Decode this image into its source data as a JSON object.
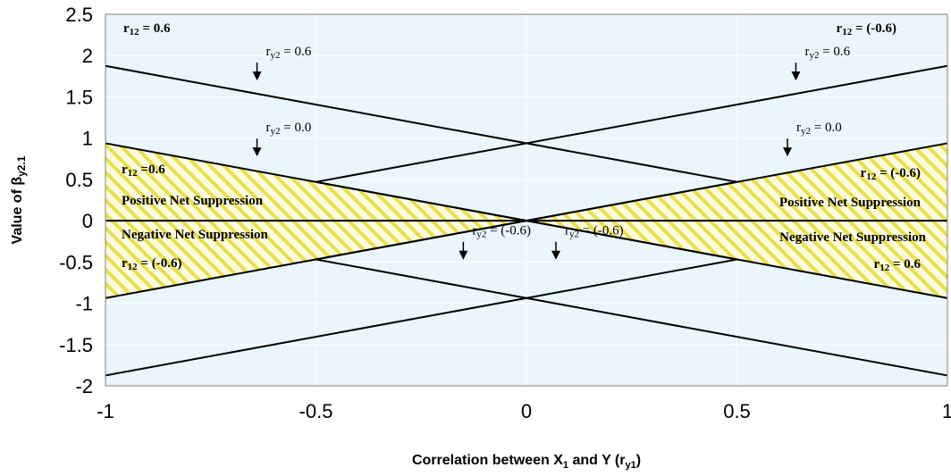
{
  "chart_data": {
    "type": "line",
    "xlabel": "Correlation between X",
    "xlabel_sub": "1",
    "xlabel_tail": " and Y (r",
    "xlabel_sub2": "y1",
    "xlabel_close": ")",
    "ylabel": "Value of β",
    "ylabel_sub": "y2.1",
    "xlim": [
      -1,
      1
    ],
    "ylim": [
      -2,
      2.5
    ],
    "x_ticks": [
      "-1",
      "-0.5",
      "0",
      "0.5",
      "1"
    ],
    "y_ticks": [
      "2.5",
      "2",
      "1.5",
      "1",
      "0.5",
      "0",
      "-0.5",
      "-1",
      "-1.5",
      "-2"
    ],
    "grid": "horizontal",
    "colors": {
      "plot_bg": "#eaf6fb",
      "grid": "#ffffff",
      "line": "#000000",
      "hatch_fill": "#fffbe0",
      "hatch_stripe": "#e7e04a"
    },
    "series": [
      {
        "x": [
          -1,
          0.5
        ],
        "y": [
          1.875,
          0.469
        ]
      },
      {
        "x": [
          -0.5,
          1
        ],
        "y": [
          0.469,
          1.875
        ]
      },
      {
        "x": [
          -1,
          0.5
        ],
        "y": [
          0.9375,
          -0.469
        ]
      },
      {
        "x": [
          -0.5,
          1
        ],
        "y": [
          -0.469,
          0.9375
        ]
      },
      {
        "x": [
          -1,
          0.5
        ],
        "y": [
          -0.9375,
          0.469
        ]
      },
      {
        "x": [
          -0.5,
          1
        ],
        "y": [
          0.469,
          -0.9375
        ]
      },
      {
        "x": [
          -1,
          0.5
        ],
        "y": [
          -1.875,
          -0.469
        ]
      },
      {
        "x": [
          -0.5,
          1
        ],
        "y": [
          -0.469,
          -1.875
        ]
      },
      {
        "x": [
          -1,
          1
        ],
        "y": [
          0,
          0
        ]
      }
    ],
    "shaded_regions": [
      {
        "x": [
          -1,
          0,
          -1
        ],
        "y": [
          0.9375,
          0,
          -0.9375
        ]
      },
      {
        "x": [
          1,
          0,
          1
        ],
        "y": [
          0.9375,
          0,
          -0.9375
        ]
      }
    ],
    "annotations": {
      "corner_left": {
        "main": "r",
        "sub": "12",
        "rest": " = 0.6"
      },
      "corner_right": {
        "main": "r",
        "sub": "12",
        "rest": " = (-0.6)"
      },
      "left_upper_r12": {
        "main": "r",
        "sub": "12",
        "rest": " =0.6"
      },
      "left_pos": "Positive Net Suppression",
      "left_neg": "Negative Net Suppression",
      "left_lower_r12": {
        "main": "r",
        "sub": "12",
        "rest": " = (-0.6)"
      },
      "right_upper_r12": {
        "main": "r",
        "sub": "12",
        "rest": " = (-0.6)"
      },
      "right_pos": "Positive Net Suppression",
      "right_neg": "Negative Net Suppression",
      "right_lower_r12": {
        "main": "r",
        "sub": "12",
        "rest": " = 0.6"
      },
      "ry2_labels": [
        {
          "main": "r",
          "sub": "y2",
          "rest": " = 0.6",
          "x": -0.64,
          "y": 1.72
        },
        {
          "main": "r",
          "sub": "y2",
          "rest": " = 0.6",
          "x": 0.64,
          "y": 1.72
        },
        {
          "main": "r",
          "sub": "y2",
          "rest": " = 0.0",
          "x": -0.64,
          "y": 0.8
        },
        {
          "main": "r",
          "sub": "y2",
          "rest": " = 0.0",
          "x": 0.62,
          "y": 0.8
        },
        {
          "main": "r",
          "sub": "y2",
          "rest": " = (-0.6)",
          "x": -0.15,
          "y": -0.45
        },
        {
          "main": "r",
          "sub": "y2",
          "rest": " = (-0.6)",
          "x": 0.07,
          "y": -0.45
        }
      ]
    }
  }
}
